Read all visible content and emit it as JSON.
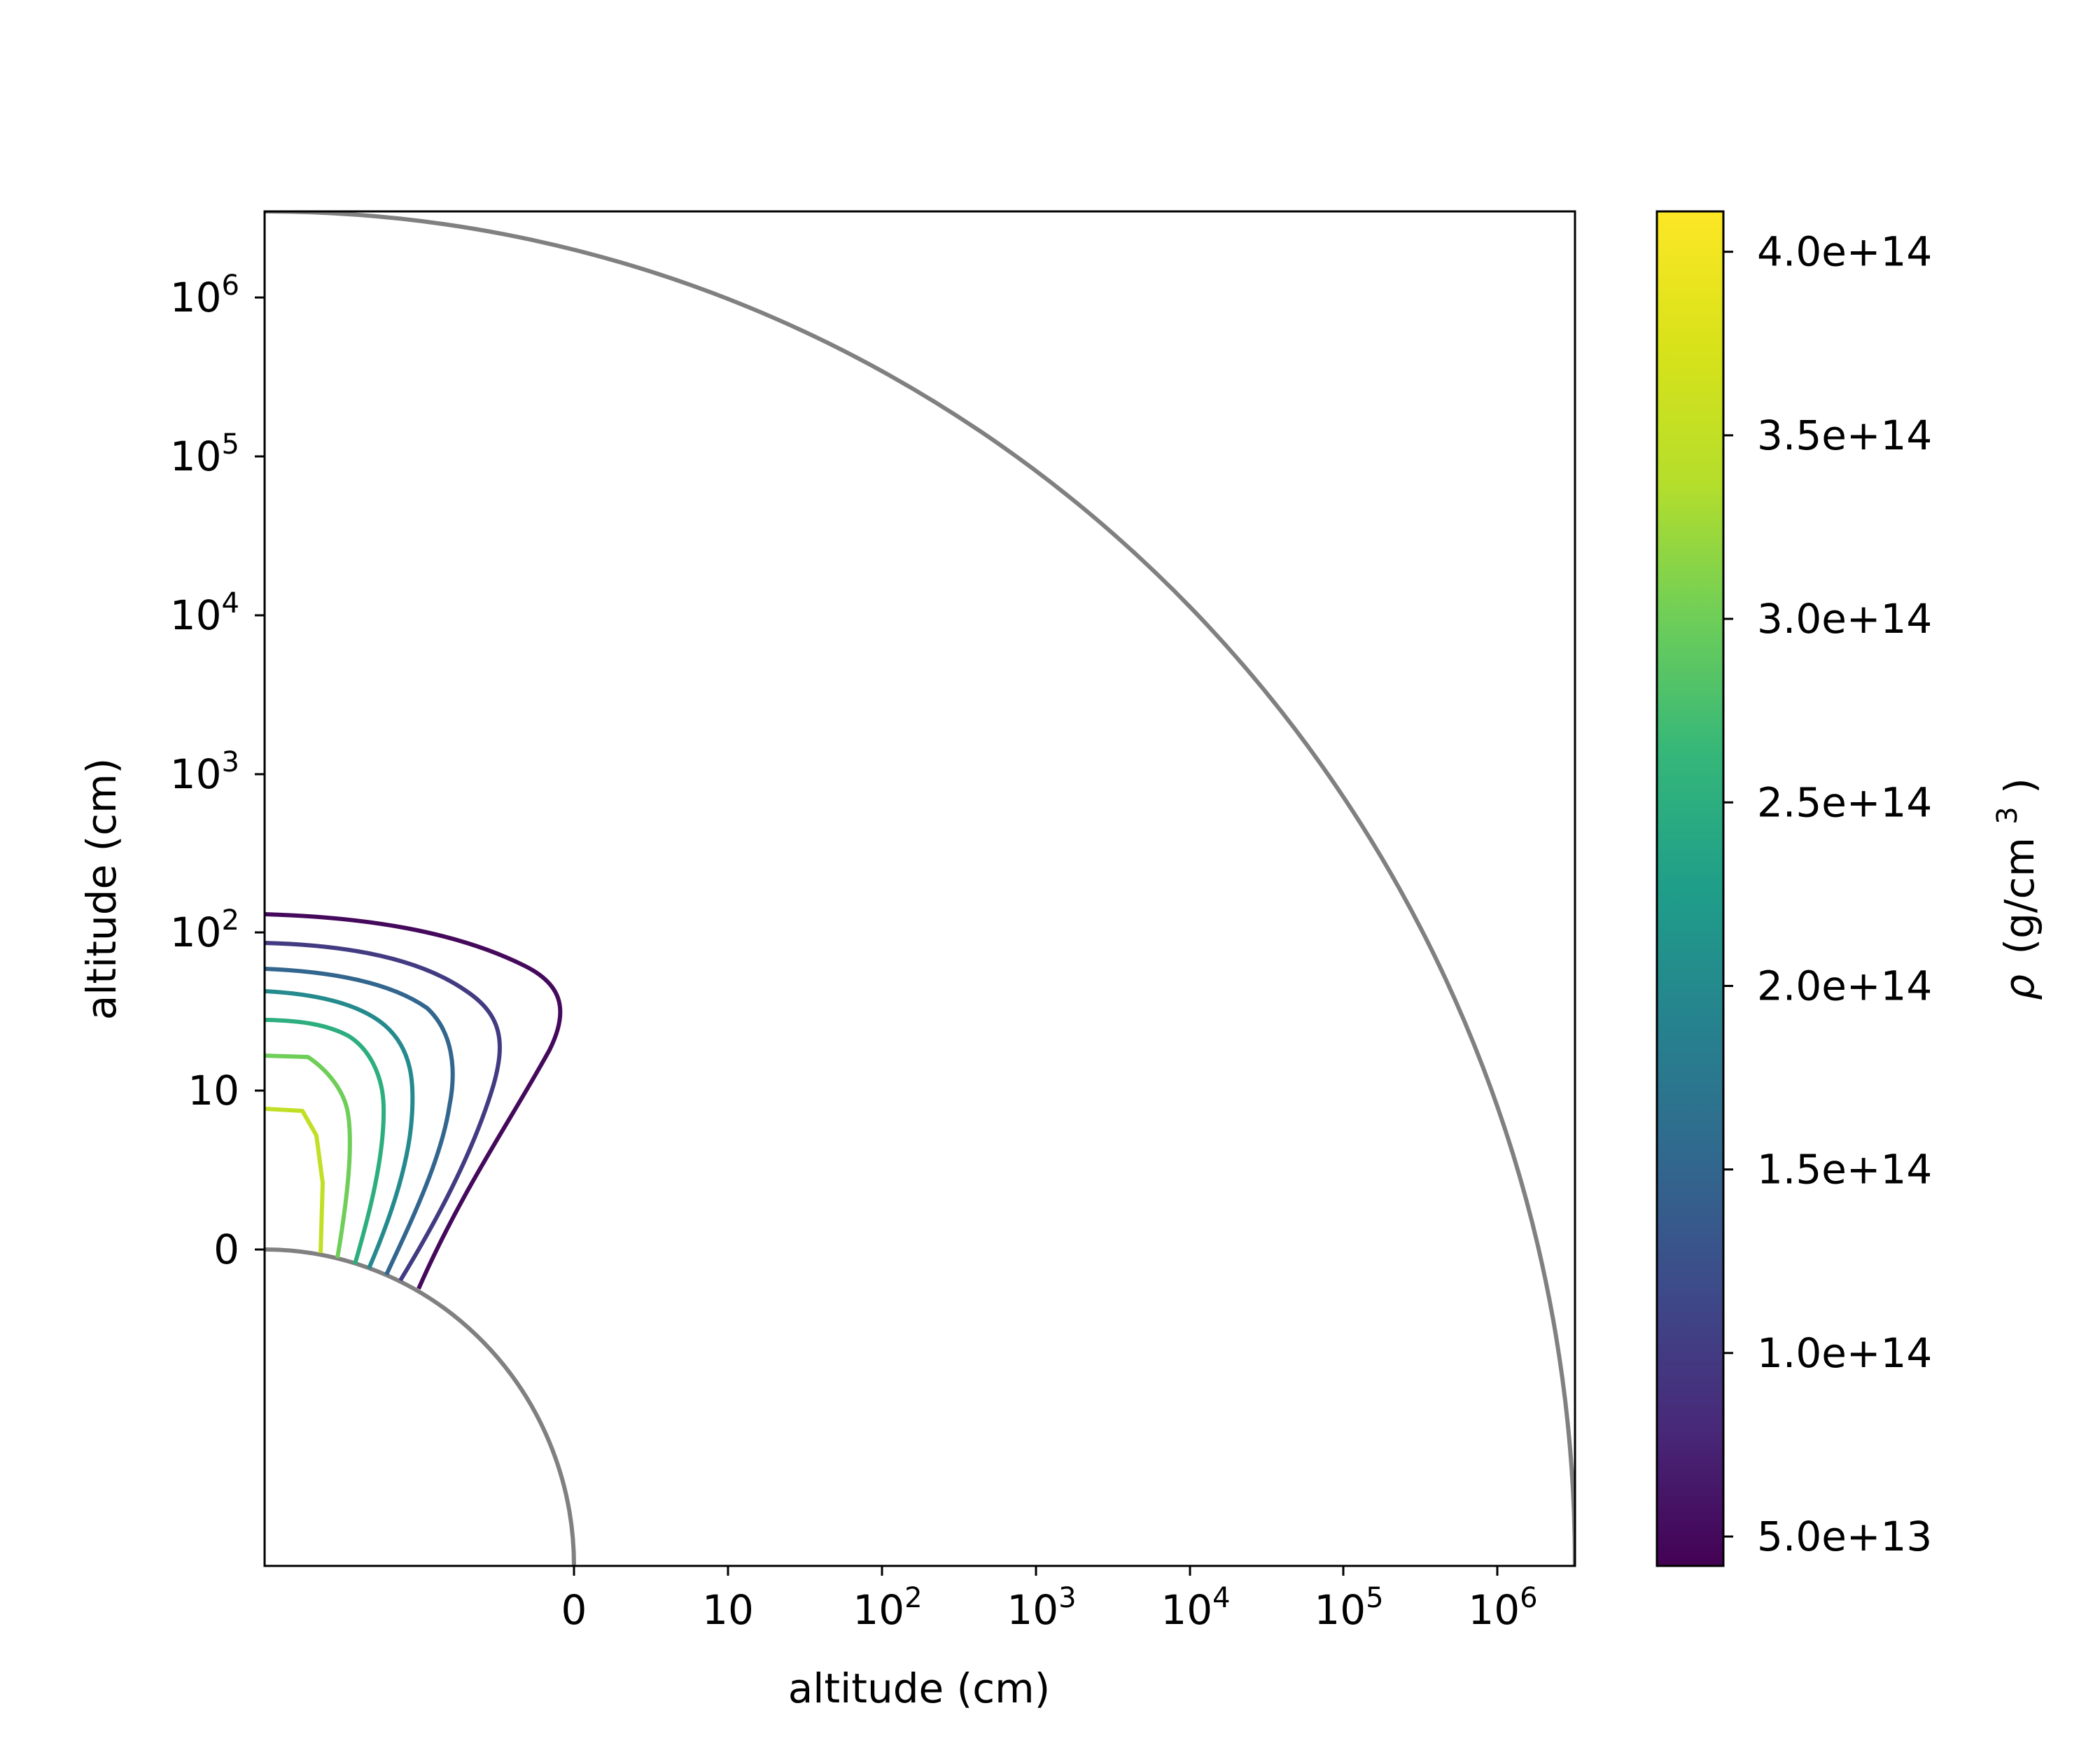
{
  "chart_data": {
    "type": "contour",
    "title": "",
    "xlabel": "altitude (cm)",
    "ylabel": "altitude (cm)",
    "x_ticks": [
      {
        "label": "0",
        "sup": ""
      },
      {
        "label": "10",
        "sup": ""
      },
      {
        "label": "10",
        "sup": "2"
      },
      {
        "label": "10",
        "sup": "3"
      },
      {
        "label": "10",
        "sup": "4"
      },
      {
        "label": "10",
        "sup": "5"
      },
      {
        "label": "10",
        "sup": "6"
      }
    ],
    "y_ticks": [
      {
        "label": "0",
        "sup": ""
      },
      {
        "label": "10",
        "sup": ""
      },
      {
        "label": "10",
        "sup": "2"
      },
      {
        "label": "10",
        "sup": "3"
      },
      {
        "label": "10",
        "sup": "4"
      },
      {
        "label": "10",
        "sup": "5"
      },
      {
        "label": "10",
        "sup": "6"
      }
    ],
    "colorbar": {
      "label_symbol": "ρ",
      "label_unit": "(g/cm",
      "label_unit_sup": "3",
      "label_close": ")",
      "min": 42000000000000,
      "max": 411000000000000,
      "ticks": [
        {
          "value": 50000000000000,
          "label": "5.0e+13"
        },
        {
          "value": 100000000000000,
          "label": "1.0e+14"
        },
        {
          "value": 150000000000000,
          "label": "1.5e+14"
        },
        {
          "value": 200000000000000,
          "label": "2.0e+14"
        },
        {
          "value": 250000000000000,
          "label": "2.5e+14"
        },
        {
          "value": 300000000000000,
          "label": "3.0e+14"
        },
        {
          "value": 350000000000000,
          "label": "3.5e+14"
        },
        {
          "value": 400000000000000,
          "label": "4.0e+14"
        }
      ]
    },
    "contour_levels": [
      50000000000000,
      100000000000000,
      150000000000000,
      200000000000000,
      250000000000000,
      300000000000000,
      350000000000000
    ],
    "boundary_color": "#808080"
  }
}
